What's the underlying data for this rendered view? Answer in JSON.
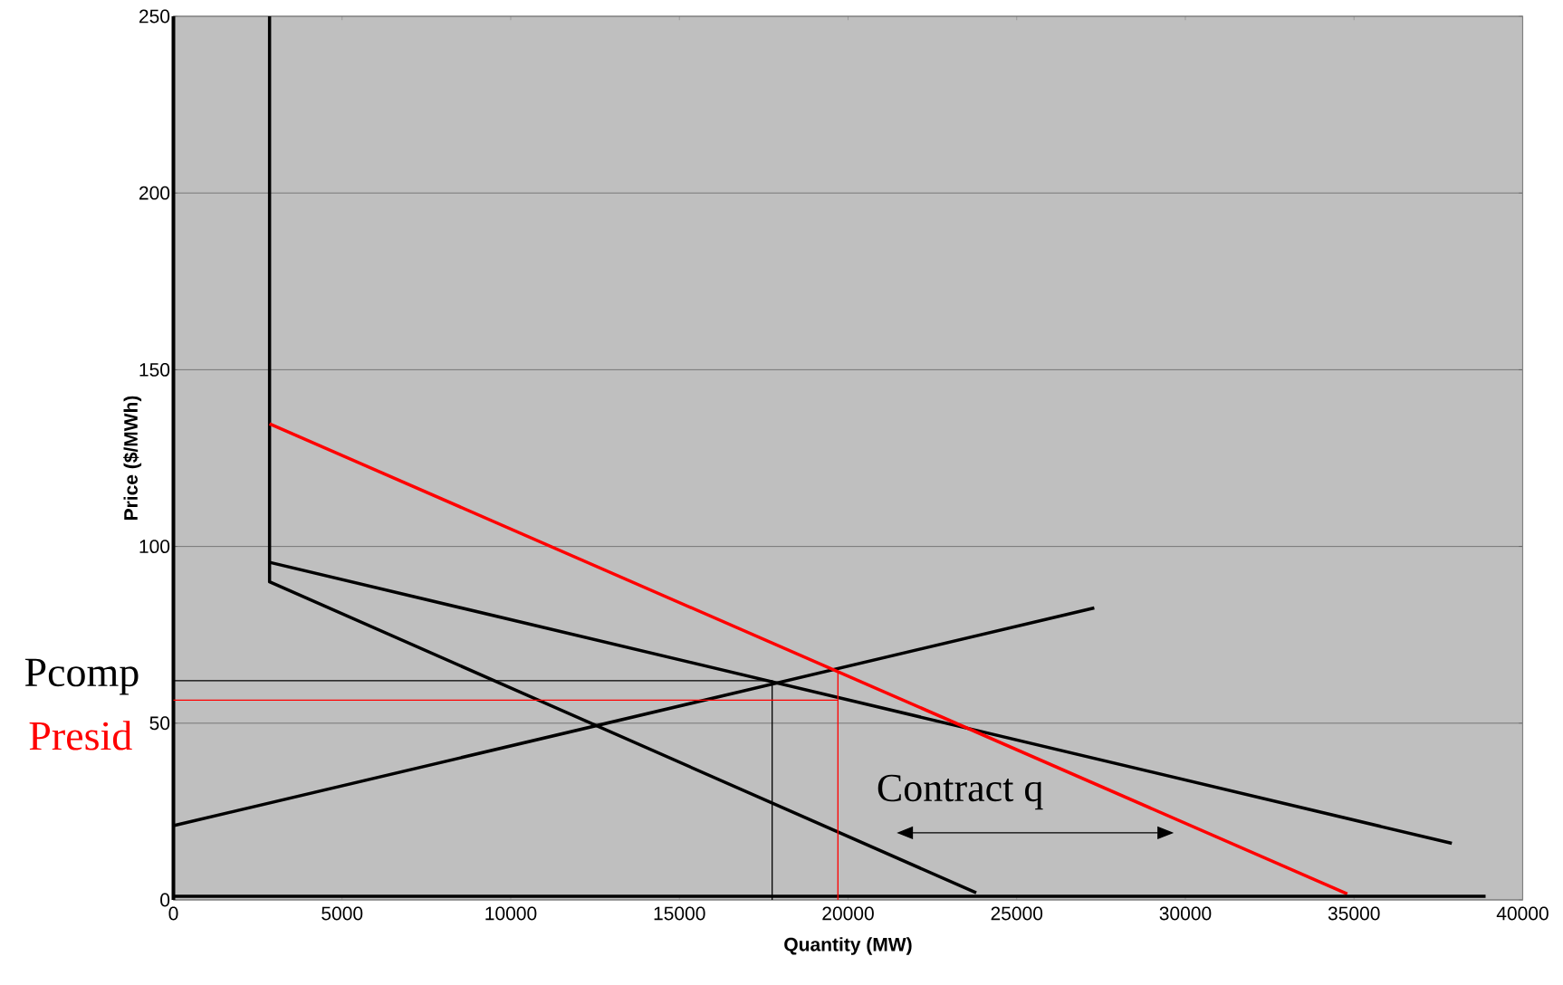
{
  "chart_data": {
    "type": "line",
    "xlabel": "Quantity (MW)",
    "ylabel": "Price ($/MWh)",
    "xlim": [
      0,
      40000
    ],
    "ylim": [
      0,
      250
    ],
    "xticks": [
      0,
      5000,
      10000,
      15000,
      20000,
      25000,
      30000,
      35000,
      40000
    ],
    "yticks": [
      0,
      50,
      100,
      150,
      200,
      250
    ],
    "grid": "y",
    "marker": "none",
    "series": [
      {
        "color": "#000000",
        "x": [
          2850,
          2850,
          23800
        ],
        "values": [
          250,
          90,
          2
        ]
      },
      {
        "color": "#000000",
        "x": [
          2850,
          37900
        ],
        "values": [
          95.5,
          16
        ]
      },
      {
        "color": "#000000",
        "x": [
          0,
          27300
        ],
        "values": [
          21,
          82.6
        ]
      },
      {
        "color": "#ff0000",
        "x": [
          2850,
          34800
        ],
        "values": [
          134.7,
          1.7
        ]
      },
      {
        "color": "#000000",
        "x": [
          0,
          38900
        ],
        "values": [
          1,
          1
        ]
      },
      {
        "type": "step",
        "color": "#000000",
        "x": [
          0,
          17750
        ],
        "values": [
          62,
          0
        ]
      },
      {
        "type": "step",
        "color": "#ff0000",
        "x": [
          0,
          19700,
          19700
        ],
        "values": [
          56.5,
          0,
          65
        ]
      }
    ],
    "annotations": [
      "Pcomp",
      "Presid",
      "Contract q"
    ]
  }
}
